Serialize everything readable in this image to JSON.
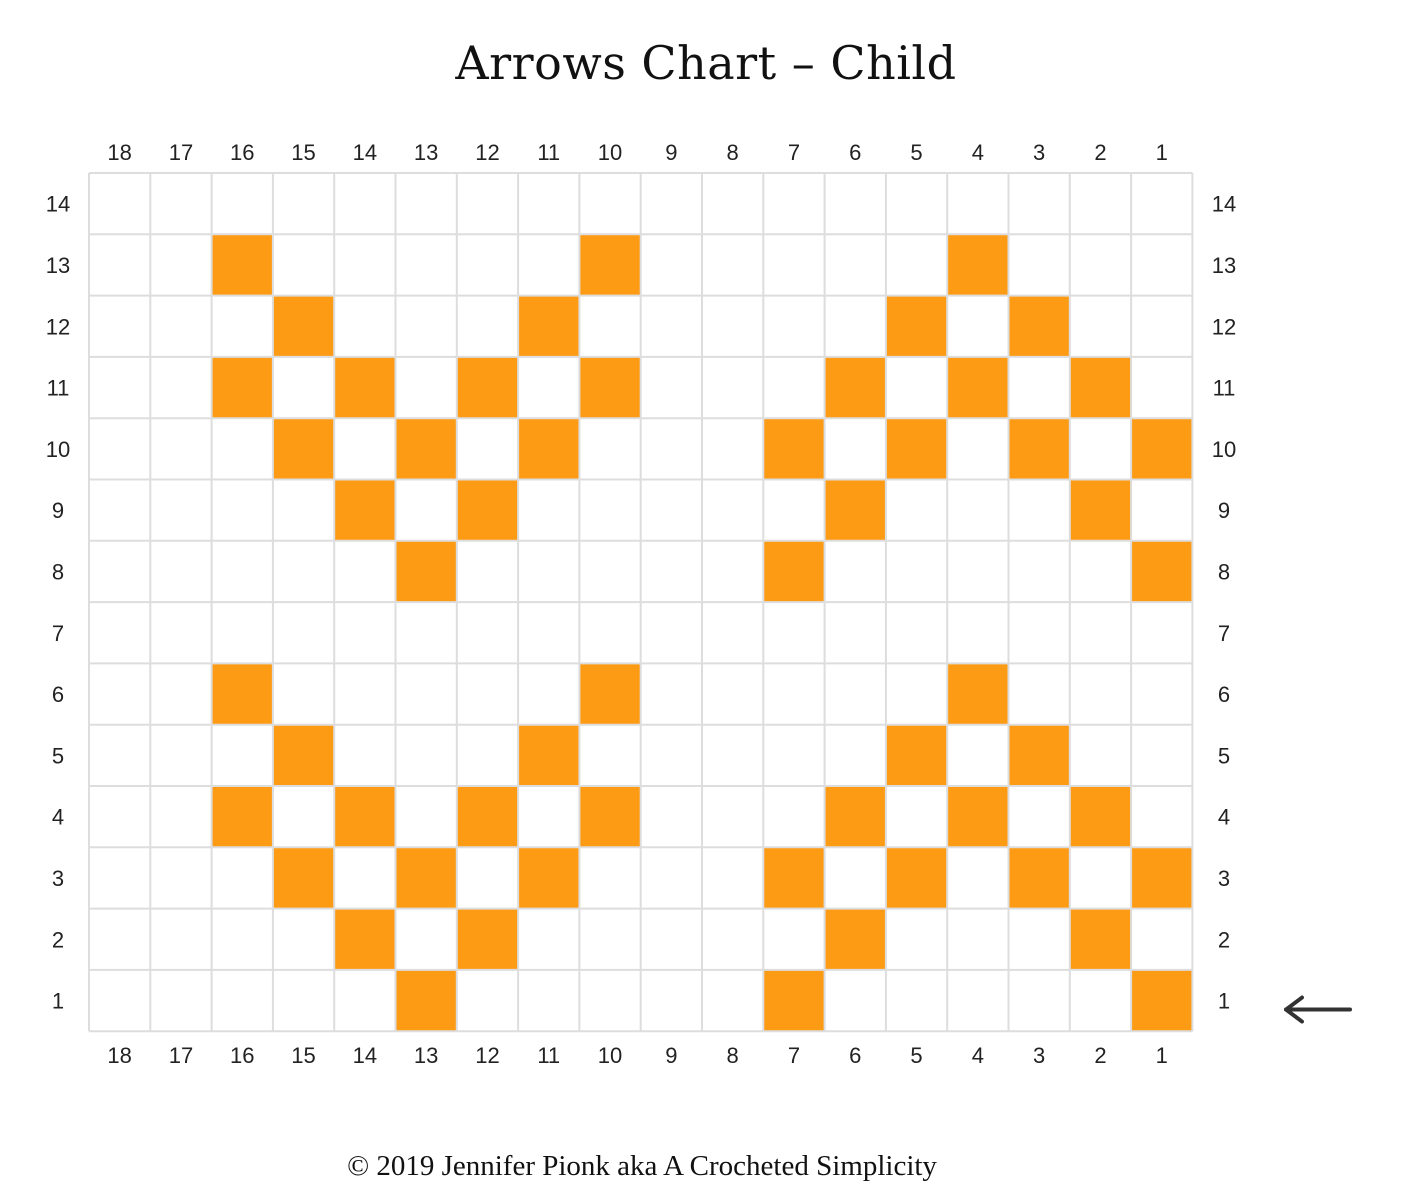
{
  "title": "Arrows Chart – Child",
  "footer": "© 2019 Jennifer Pionk aka A Crocheted Simplicity",
  "colors": {
    "filled": "#fd9b14",
    "grid": "#dddddd",
    "empty": "#ffffff",
    "arrow": "#333333"
  },
  "icons": {
    "row_start_marker": "arrow-left-icon"
  },
  "chart_data": {
    "type": "heatmap",
    "columns": 18,
    "rows": 14,
    "column_labels": [
      "18",
      "17",
      "16",
      "15",
      "14",
      "13",
      "12",
      "11",
      "10",
      "9",
      "8",
      "7",
      "6",
      "5",
      "4",
      "3",
      "2",
      "1"
    ],
    "row_labels": [
      "14",
      "13",
      "12",
      "11",
      "10",
      "9",
      "8",
      "7",
      "6",
      "5",
      "4",
      "3",
      "2",
      "1"
    ],
    "arrow_at_row": "1",
    "filled_cells": {
      "1": [
        1,
        7,
        13
      ],
      "2": [
        2,
        6,
        12,
        14
      ],
      "3": [
        1,
        3,
        5,
        7,
        11,
        13,
        15
      ],
      "4": [
        2,
        4,
        6,
        10,
        12,
        14,
        16
      ],
      "5": [
        3,
        5,
        11,
        15
      ],
      "6": [
        4,
        10,
        16
      ],
      "7": [],
      "8": [
        1,
        7,
        13
      ],
      "9": [
        2,
        6,
        12,
        14
      ],
      "10": [
        1,
        3,
        5,
        7,
        11,
        13,
        15
      ],
      "11": [
        2,
        4,
        6,
        10,
        12,
        14,
        16
      ],
      "12": [
        3,
        5,
        11,
        15
      ],
      "13": [
        4,
        10,
        16
      ],
      "14": []
    }
  }
}
